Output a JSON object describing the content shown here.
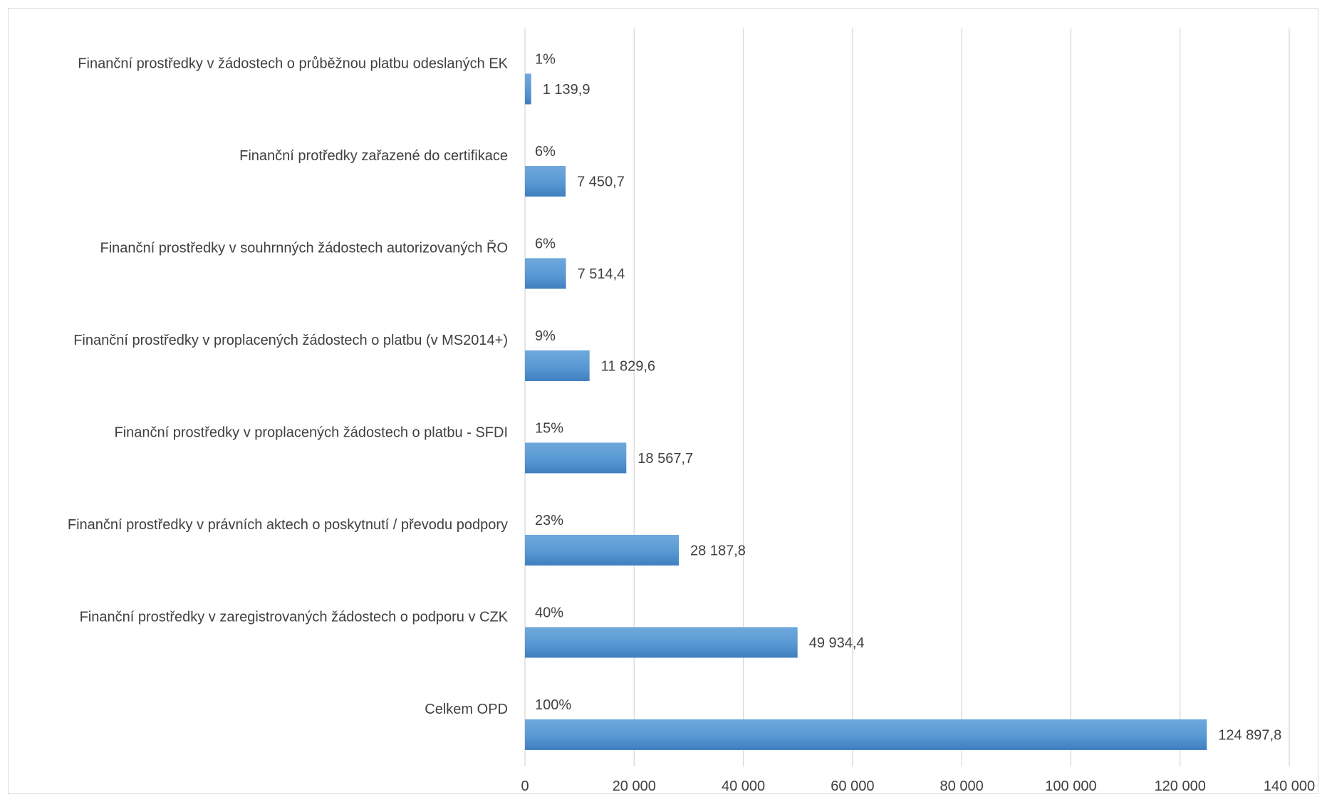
{
  "chart_data": {
    "type": "bar",
    "orientation": "horizontal",
    "title": "",
    "xlabel": "",
    "ylabel": "",
    "xlim": [
      0,
      140000
    ],
    "x_ticks": [
      0,
      20000,
      40000,
      60000,
      80000,
      100000,
      120000,
      140000
    ],
    "x_tick_labels": [
      "0",
      "20 000",
      "40 000",
      "60 000",
      "80 000",
      "100 000",
      "120 000",
      "140 000"
    ],
    "grid": true,
    "legend": "none",
    "bar_color": "#5b9bd5",
    "categories": [
      "Finanční prostředky v žádostech o průběžnou platbu odeslaných EK",
      "Finanční protředky zařazené do certifikace",
      "Finanční prostředky v souhrnných žádostech autorizovaných ŘO",
      "Finanční prostředky v proplacených žádostech o platbu (v MS2014+)",
      "Finanční prostředky v proplacených žádostech o platbu - SFDI",
      "Finanční prostředky v právních aktech o poskytnutí / převodu podpory",
      "Finanční prostředky v zaregistrovaných žádostech o podporu v CZK",
      "Celkem OPD"
    ],
    "values": [
      1139.9,
      7450.7,
      7514.4,
      11829.6,
      18567.7,
      28187.8,
      49934.4,
      124897.8
    ],
    "value_labels": [
      "1 139,9",
      "7 450,7",
      "7 514,4",
      "11 829,6",
      "18 567,7",
      "28 187,8",
      "49 934,4",
      "124 897,8"
    ],
    "percent_labels": [
      "1%",
      "6%",
      "6%",
      "9%",
      "15%",
      "23%",
      "40%",
      "100%"
    ]
  }
}
